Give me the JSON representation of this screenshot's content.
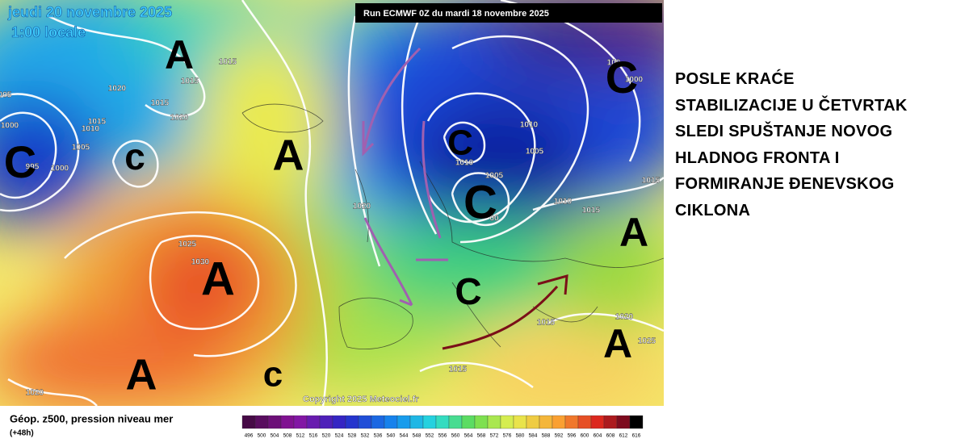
{
  "header": {
    "date": "jeudi 20 novembre 2025",
    "time": "1:00 locale",
    "run": "Run ECMWF 0Z du mardi 18 novembre 2025"
  },
  "map": {
    "centers": [
      "A",
      "A",
      "A",
      "A",
      "A",
      "A",
      "C",
      "c",
      "C",
      "C",
      "C",
      "c",
      "C"
    ],
    "isobar_labels": [
      "1015",
      "1015",
      "1020",
      "1015",
      "1020",
      "1015",
      "1010",
      "1005",
      "1000",
      "995",
      "1000",
      "005",
      "1025",
      "1030",
      "1020",
      "1010",
      "1005",
      "1010",
      "1005",
      "00",
      "1010",
      "1015",
      "1015",
      "1000",
      "100",
      "1015",
      "1020",
      "1025",
      "1015",
      "1020"
    ],
    "copyright": "Copyright 2025 Meteociel.fr"
  },
  "legend": {
    "title": "Géop. z500, pression niveau mer",
    "lead": "(+48h)",
    "scale": [
      496,
      500,
      504,
      508,
      512,
      516,
      520,
      524,
      528,
      532,
      536,
      540,
      544,
      548,
      552,
      556,
      560,
      564,
      568,
      572,
      576,
      580,
      584,
      588,
      592,
      596,
      600,
      604,
      608,
      612,
      616
    ]
  },
  "commentary": {
    "lines": [
      "POSLE KRAĆE",
      "STABILIZACIJE U ČETVRTAK",
      "SLEDI SPUŠTANJE NOVOG",
      "HLADNOG FRONTA I",
      "FORMIRANJE ĐENEVSKOG",
      "CIKLONA"
    ]
  }
}
